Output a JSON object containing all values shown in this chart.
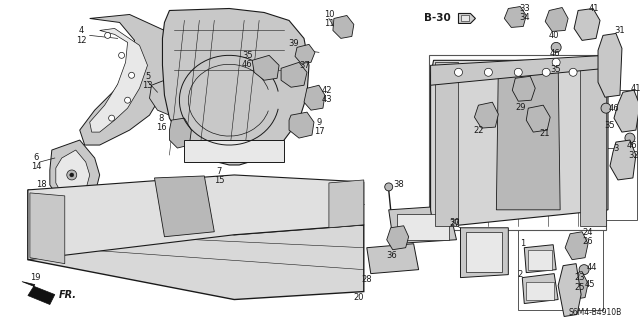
{
  "bg_color": "#ffffff",
  "line_color": "#1a1a1a",
  "gray_fill": "#c8c8c8",
  "light_fill": "#e8e8e8",
  "mid_fill": "#b8b8b8",
  "dark_fill": "#909090",
  "figsize": [
    6.4,
    3.19
  ],
  "dpi": 100,
  "diagram_code": "S6M4-B4910B",
  "b30_label": "B-30"
}
